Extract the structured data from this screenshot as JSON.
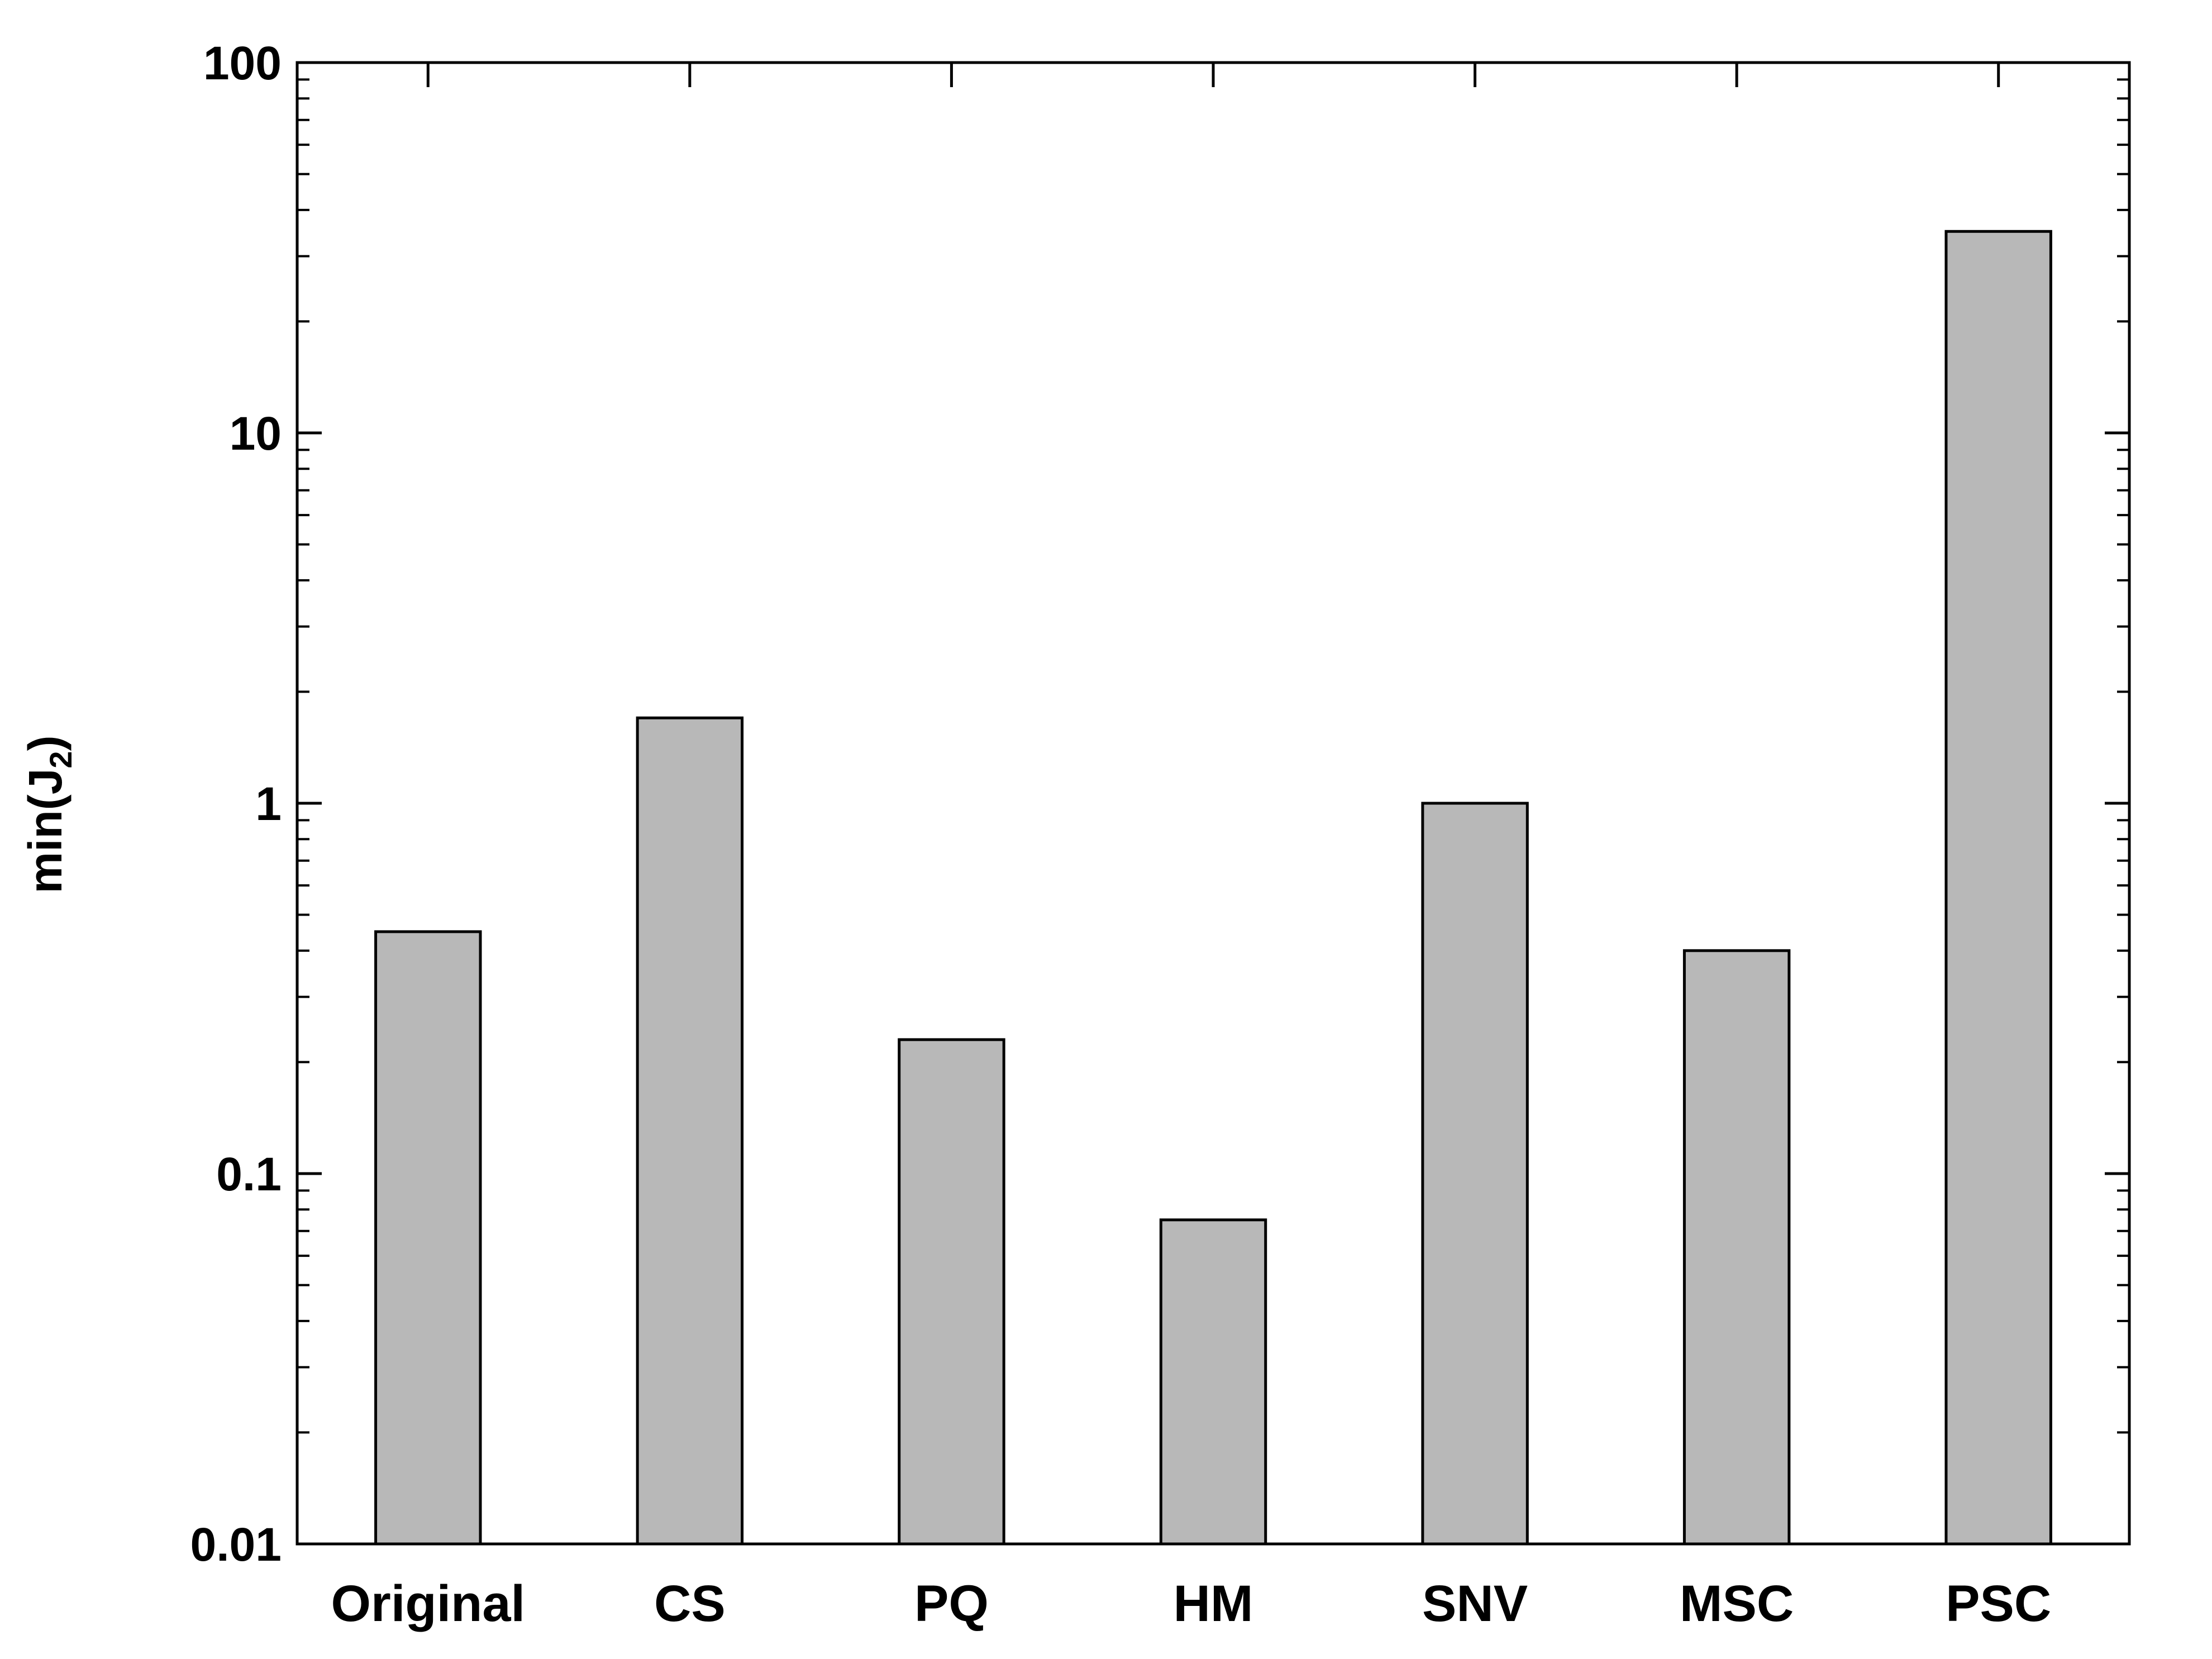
{
  "chart_data": {
    "type": "bar",
    "title": "",
    "xlabel": "",
    "ylabel": "min(J2)",
    "ylabel_parts": {
      "base": "min(J",
      "sub": "2",
      "close": ")"
    },
    "yscale": "log",
    "ylim": [
      0.01,
      100
    ],
    "yticks": [
      0.01,
      0.1,
      1,
      10,
      100
    ],
    "ytick_labels": [
      "0.01",
      "0.1",
      "1",
      "10",
      "100"
    ],
    "categories": [
      "Original",
      "CS",
      "PQ",
      "HM",
      "SNV",
      "MSC",
      "PSC"
    ],
    "values": [
      0.45,
      1.7,
      0.23,
      0.075,
      1.0,
      0.4,
      35
    ],
    "bar_color": "#b8b8b8",
    "edge_color": "#000000",
    "grid": false,
    "legend": "none"
  }
}
